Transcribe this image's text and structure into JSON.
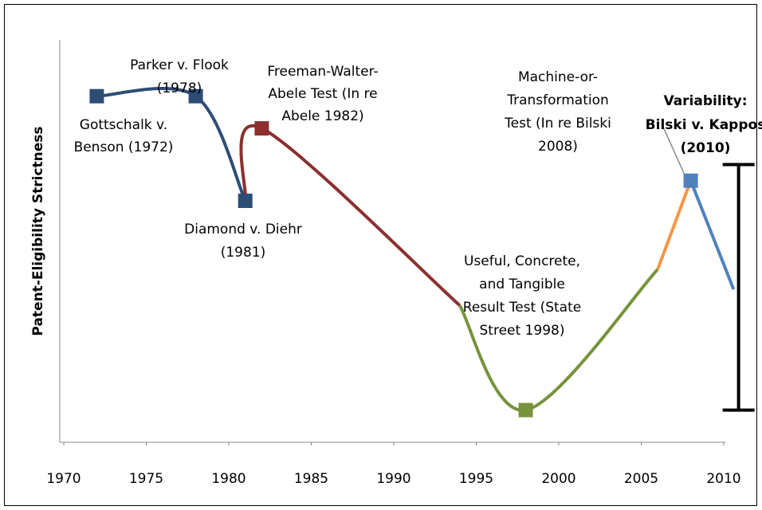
{
  "chart_data": {
    "type": "line",
    "y_label": "Patent-Eligibility Strictness",
    "xlim": [
      1970,
      2010
    ],
    "xticks": [
      1970,
      1975,
      1980,
      1985,
      1990,
      1995,
      2000,
      2005,
      2010
    ],
    "ylim": [
      0,
      100
    ],
    "series": [
      {
        "color": "#2c4d75",
        "x": [
          1972,
          1978,
          1981
        ],
        "values": [
          86,
          86,
          60
        ],
        "markers": [
          true,
          true,
          true
        ]
      },
      {
        "color": "#8b2f2f",
        "x": [
          1981,
          1982,
          1994
        ],
        "values": [
          60,
          78,
          34
        ],
        "markers": [
          false,
          true,
          false
        ]
      },
      {
        "color": "#77933c",
        "x": [
          1994,
          1998,
          2006
        ],
        "values": [
          34,
          8,
          43
        ],
        "markers": [
          false,
          true,
          false
        ]
      },
      {
        "color": "#f79646",
        "x": [
          2006,
          2008
        ],
        "values": [
          43,
          65
        ],
        "markers": [
          false,
          false
        ]
      },
      {
        "color": "#4f81bd",
        "x": [
          2008,
          2010.6
        ],
        "values": [
          65,
          38
        ],
        "markers": [
          true,
          false
        ]
      }
    ],
    "error_bar": {
      "x": 2010.9,
      "low": 8,
      "high": 69,
      "color": "#000000"
    },
    "annotations": [
      {
        "lines": [
          "Parker v. Flook",
          "(1978)"
        ]
      },
      {
        "lines": [
          "Gottschalk v.",
          "Benson (1972)"
        ]
      },
      {
        "lines": [
          "Freeman-Walter-",
          "Abele Test (In re",
          "Abele 1982)"
        ]
      },
      {
        "lines": [
          "Diamond v. Diehr",
          "(1981)"
        ]
      },
      {
        "lines": [
          "Machine-or-",
          "Transformation",
          "Test (In re Bilski",
          "2008)"
        ]
      },
      {
        "lines": [
          "Variability:",
          "Bilski v. Kappos",
          "(2010)"
        ],
        "bold": true
      },
      {
        "lines": [
          "Useful, Concrete,",
          "and Tangible",
          "Result Test (State",
          "Street 1998)"
        ]
      }
    ]
  }
}
